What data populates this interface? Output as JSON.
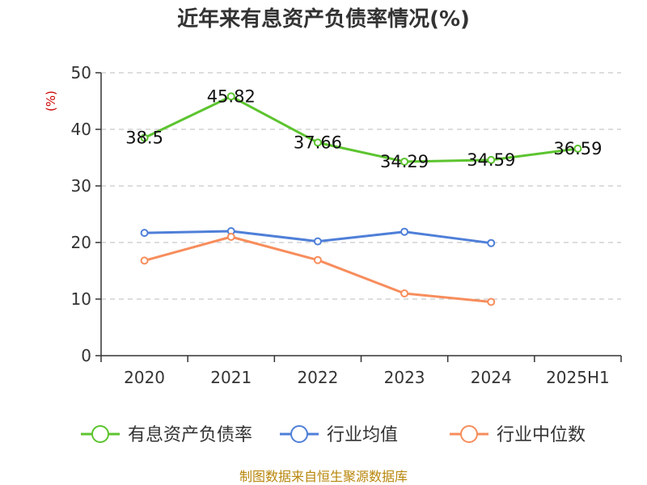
{
  "title": "近年来有息资产负债率情况(%)",
  "source": "制图数据来自恒生聚源数据库",
  "chart_data": {
    "type": "line",
    "title": "近年来有息资产负债率情况(%)",
    "ylabel": "(%)",
    "categories": [
      "2020",
      "2021",
      "2022",
      "2023",
      "2024",
      "2025H1"
    ],
    "ylim": [
      0,
      50
    ],
    "yticks": [
      0,
      10,
      20,
      30,
      40,
      50
    ],
    "grid": true,
    "legend": "bottom",
    "series": [
      {
        "name": "有息资产负债率",
        "color": "#5cc42f",
        "values": [
          38.5,
          45.82,
          37.66,
          34.29,
          34.59,
          36.59
        ],
        "labels": [
          "38.5",
          "45.82",
          "37.66",
          "34.29",
          "34.59",
          "36.59"
        ]
      },
      {
        "name": "行业均值",
        "color": "#4f7fd8",
        "values": [
          21.7,
          22.0,
          20.2,
          21.9,
          19.9,
          null
        ]
      },
      {
        "name": "行业中位数",
        "color": "#f78d5c",
        "values": [
          16.8,
          21.0,
          16.9,
          11.0,
          9.5,
          null
        ]
      }
    ]
  }
}
